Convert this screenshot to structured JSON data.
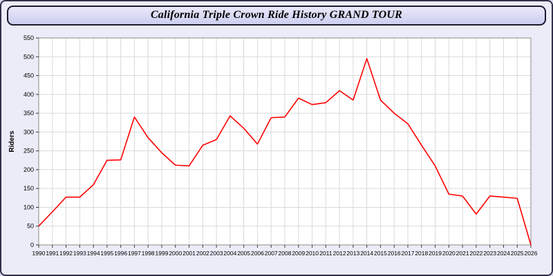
{
  "header": {
    "title": "California Triple Crown Ride History GRAND TOUR"
  },
  "chart_data": {
    "type": "line",
    "title": "California Triple Crown Ride History GRAND TOUR",
    "xlabel": "",
    "ylabel": "Riders",
    "ylim": [
      0,
      550
    ],
    "ytick_step": 50,
    "grid": true,
    "legend": "none",
    "line_color": "#ff0000",
    "plot_bg": "#ffffff",
    "grid_color": "#d9d9d9",
    "frame_color": "#8a8a8a",
    "x": [
      1990,
      1991,
      1992,
      1993,
      1994,
      1995,
      1996,
      1997,
      1998,
      1999,
      2000,
      2001,
      2002,
      2003,
      2004,
      2005,
      2006,
      2007,
      2008,
      2009,
      2010,
      2011,
      2012,
      2013,
      2014,
      2015,
      2016,
      2017,
      2018,
      2019,
      2020,
      2021,
      2022,
      2023,
      2024,
      2025,
      2026
    ],
    "values": [
      50,
      88,
      127,
      127,
      160,
      225,
      226,
      340,
      285,
      245,
      212,
      210,
      265,
      280,
      343,
      310,
      268,
      338,
      340,
      390,
      373,
      378,
      410,
      385,
      495,
      385,
      350,
      322,
      265,
      210,
      135,
      130,
      82,
      130,
      127,
      124,
      0
    ]
  }
}
